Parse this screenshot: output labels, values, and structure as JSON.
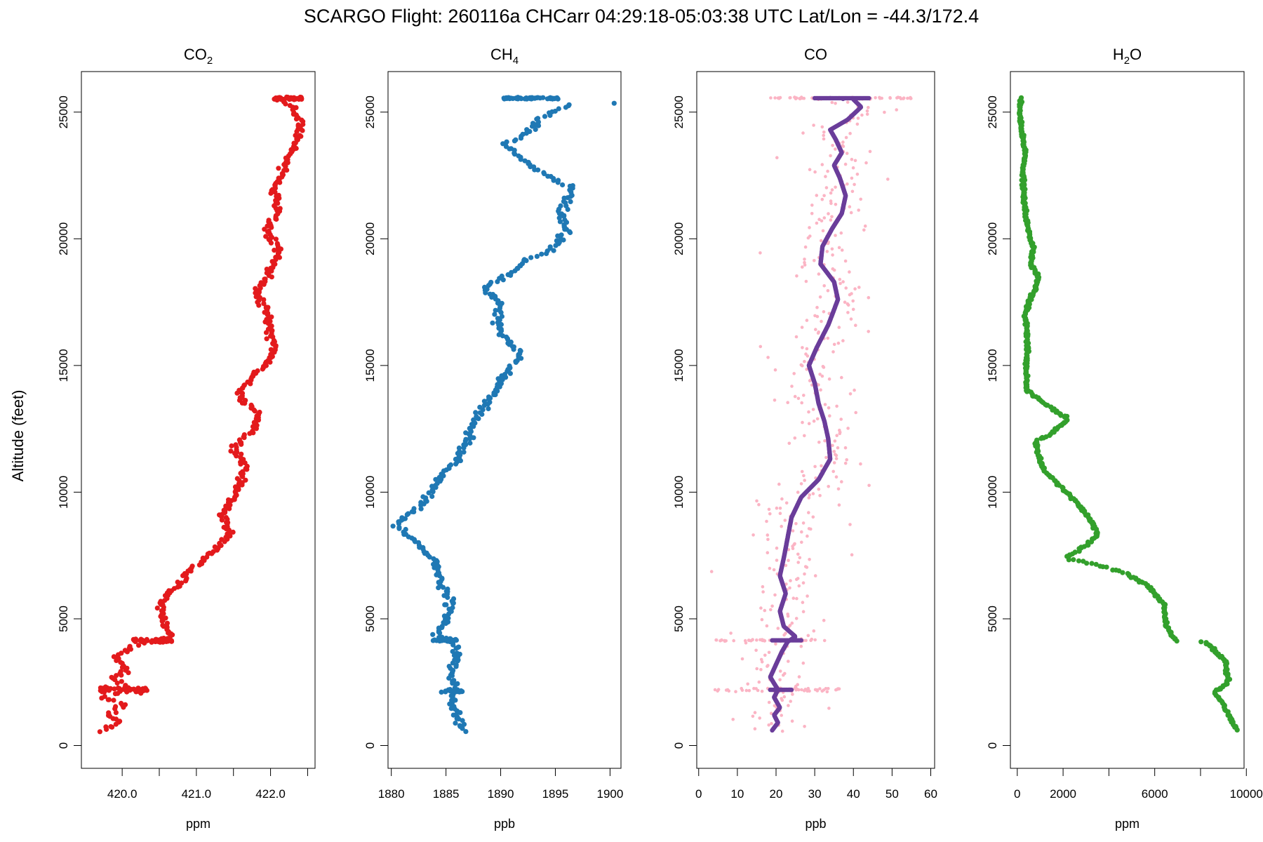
{
  "title": "SCARGO Flight: 260116a  CHCarr  04:29:18-05:03:38 UTC  Lat/Lon = -44.3/172.4",
  "ylabel": "Altitude (feet)",
  "chart_data": [
    {
      "type": "scatter",
      "name": "co2",
      "title_main": "CO",
      "title_sub": "2",
      "xlabel": "ppm",
      "xlim": [
        419.45,
        422.6
      ],
      "ylim": [
        -900,
        26600
      ],
      "xticks": [
        420.0,
        420.5,
        421.0,
        421.5,
        422.0,
        422.5
      ],
      "xtick_labels": [
        "420.0",
        "",
        "421.0",
        "",
        "422.0",
        ""
      ],
      "yticks": [
        0,
        5000,
        10000,
        15000,
        20000,
        25000
      ],
      "ytick_labels": [
        "0",
        "5000",
        "10000",
        "15000",
        "20000",
        "25000"
      ],
      "color": "#e31a1c",
      "profile": [
        [
          419.75,
          600
        ],
        [
          419.95,
          900
        ],
        [
          419.8,
          1300
        ],
        [
          420.05,
          1600
        ],
        [
          419.7,
          1900
        ],
        [
          420.1,
          2200
        ],
        [
          419.9,
          2600
        ],
        [
          420.05,
          3000
        ],
        [
          419.9,
          3500
        ],
        [
          420.1,
          3900
        ],
        [
          420.4,
          4100
        ],
        [
          420.65,
          4300
        ],
        [
          420.55,
          5000
        ],
        [
          420.5,
          5600
        ],
        [
          420.75,
          6300
        ],
        [
          420.95,
          7000
        ],
        [
          421.2,
          7600
        ],
        [
          421.45,
          8300
        ],
        [
          421.35,
          9100
        ],
        [
          421.55,
          10000
        ],
        [
          421.65,
          11000
        ],
        [
          421.5,
          11800
        ],
        [
          421.75,
          12400
        ],
        [
          421.85,
          13100
        ],
        [
          421.55,
          13800
        ],
        [
          421.75,
          14600
        ],
        [
          422.05,
          15400
        ],
        [
          422.0,
          16300
        ],
        [
          421.95,
          17200
        ],
        [
          421.8,
          17800
        ],
        [
          422.0,
          18700
        ],
        [
          422.1,
          19600
        ],
        [
          421.95,
          20300
        ],
        [
          422.1,
          21100
        ],
        [
          422.05,
          22000
        ],
        [
          422.2,
          22900
        ],
        [
          422.35,
          23800
        ],
        [
          422.4,
          24600
        ],
        [
          422.3,
          25200
        ],
        [
          422.1,
          25500
        ],
        [
          422.4,
          25550
        ]
      ],
      "bursts": [
        {
          "alt": 2200,
          "min": 419.7,
          "max": 420.35,
          "n": 55,
          "spread": 50
        },
        {
          "alt": 4150,
          "min": 420.15,
          "max": 420.68,
          "n": 45,
          "spread": 40
        },
        {
          "alt": 25550,
          "min": 422.05,
          "max": 422.45,
          "n": 45,
          "spread": 30
        }
      ],
      "jitter": 0.05,
      "n": 460,
      "point_r": 3.6
    },
    {
      "type": "scatter",
      "name": "ch4",
      "title_main": "CH",
      "title_sub": "4",
      "xlabel": "ppb",
      "xlim": [
        1879.7,
        1901.0
      ],
      "ylim": [
        -900,
        26600
      ],
      "xticks": [
        1880,
        1885,
        1890,
        1895,
        1900
      ],
      "xtick_labels": [
        "1880",
        "1885",
        "1890",
        "1895",
        "1900"
      ],
      "yticks": [
        0,
        5000,
        10000,
        15000,
        20000,
        25000
      ],
      "ytick_labels": [
        "0",
        "5000",
        "10000",
        "15000",
        "20000",
        "25000"
      ],
      "color": "#1f78b4",
      "profile": [
        [
          1886.5,
          600
        ],
        [
          1886.0,
          1100
        ],
        [
          1885.5,
          1700
        ],
        [
          1886.0,
          2200
        ],
        [
          1885.5,
          2800
        ],
        [
          1886.0,
          3400
        ],
        [
          1885.5,
          4100
        ],
        [
          1884.0,
          4300
        ],
        [
          1885.0,
          5000
        ],
        [
          1885.5,
          5700
        ],
        [
          1884.5,
          6500
        ],
        [
          1884.0,
          7300
        ],
        [
          1882.5,
          7900
        ],
        [
          1881.5,
          8300
        ],
        [
          1880.5,
          8700
        ],
        [
          1882.0,
          9300
        ],
        [
          1883.5,
          9900
        ],
        [
          1884.5,
          10500
        ],
        [
          1886.0,
          11300
        ],
        [
          1887.0,
          12100
        ],
        [
          1887.5,
          12800
        ],
        [
          1888.5,
          13400
        ],
        [
          1889.5,
          14000
        ],
        [
          1890.5,
          14700
        ],
        [
          1892.0,
          15500
        ],
        [
          1889.5,
          16500
        ],
        [
          1890.0,
          17400
        ],
        [
          1888.5,
          18100
        ],
        [
          1890.5,
          18500
        ],
        [
          1892.0,
          19100
        ],
        [
          1894.5,
          19500
        ],
        [
          1896.0,
          20300
        ],
        [
          1895.5,
          21100
        ],
        [
          1896.5,
          22000
        ],
        [
          1893.5,
          22700
        ],
        [
          1891.5,
          23300
        ],
        [
          1890.5,
          23700
        ],
        [
          1892.5,
          24200
        ],
        [
          1893.5,
          24700
        ],
        [
          1896.5,
          25300
        ],
        [
          1900.5,
          25350
        ]
      ],
      "bursts": [
        {
          "alt": 25550,
          "min": 1890.2,
          "max": 1895.3,
          "n": 55,
          "spread": 20
        },
        {
          "alt": 4150,
          "min": 1883.8,
          "max": 1886.0,
          "n": 15,
          "spread": 25
        },
        {
          "alt": 2150,
          "min": 1884.5,
          "max": 1886.5,
          "n": 20,
          "spread": 30
        }
      ],
      "jitter": 0.4,
      "n": 420,
      "point_r": 3.6
    },
    {
      "type": "scatter",
      "name": "co",
      "title_main": "CO",
      "title_sub": "",
      "xlabel": "ppb",
      "xlim": [
        -0.5,
        61.0
      ],
      "ylim": [
        -900,
        26600
      ],
      "xticks": [
        0,
        10,
        20,
        30,
        40,
        50,
        60
      ],
      "xtick_labels": [
        "0",
        "10",
        "20",
        "30",
        "40",
        "50",
        "60"
      ],
      "yticks": [
        0,
        5000,
        10000,
        15000,
        20000,
        25000
      ],
      "ytick_labels": [
        "0",
        "5000",
        "10000",
        "15000",
        "20000",
        "25000"
      ],
      "color": "#fbb4c4",
      "smooth_color": "#6a3d9a",
      "profile": [
        [
          19.0,
          600
        ],
        [
          20.5,
          900
        ],
        [
          19.5,
          1200
        ],
        [
          21.0,
          1500
        ],
        [
          19.5,
          1900
        ],
        [
          20.5,
          2200
        ],
        [
          18.5,
          2700
        ],
        [
          20.0,
          3200
        ],
        [
          21.5,
          3700
        ],
        [
          23.0,
          4100
        ],
        [
          25.0,
          4300
        ],
        [
          22.0,
          4700
        ],
        [
          21.0,
          5300
        ],
        [
          22.5,
          6000
        ],
        [
          21.0,
          6700
        ],
        [
          22.0,
          7400
        ],
        [
          23.0,
          8200
        ],
        [
          24.0,
          9000
        ],
        [
          26.5,
          9800
        ],
        [
          31.0,
          10500
        ],
        [
          34.0,
          11300
        ],
        [
          33.5,
          12100
        ],
        [
          32.5,
          12800
        ],
        [
          31.0,
          13500
        ],
        [
          30.0,
          14300
        ],
        [
          28.5,
          15000
        ],
        [
          30.5,
          15700
        ],
        [
          33.5,
          16600
        ],
        [
          36.0,
          17600
        ],
        [
          35.0,
          18300
        ],
        [
          31.5,
          19000
        ],
        [
          32.0,
          19700
        ],
        [
          34.5,
          20400
        ],
        [
          37.0,
          21000
        ],
        [
          38.0,
          21700
        ],
        [
          36.5,
          22400
        ],
        [
          35.0,
          22900
        ],
        [
          37.0,
          23400
        ],
        [
          35.5,
          23900
        ],
        [
          34.0,
          24300
        ],
        [
          38.5,
          24700
        ],
        [
          42.0,
          25200
        ],
        [
          40.0,
          25500
        ],
        [
          34.0,
          25550
        ]
      ],
      "bursts": [
        {
          "alt": 25550,
          "min": 18.0,
          "max": 55.0,
          "n": 70,
          "spread": 20
        },
        {
          "alt": 4150,
          "min": 4.0,
          "max": 33.0,
          "n": 45,
          "spread": 20
        },
        {
          "alt": 2200,
          "min": 4.0,
          "max": 38.0,
          "n": 50,
          "spread": 40
        }
      ],
      "jitter": 7.0,
      "n": 420,
      "point_r": 2.3,
      "smooth_r": 3.2
    },
    {
      "type": "scatter",
      "name": "h2o",
      "title_main": "H",
      "title_sub": "2",
      "title_tail": "O",
      "xlabel": "ppm",
      "xlim": [
        -300,
        9900
      ],
      "ylim": [
        -900,
        26600
      ],
      "xticks": [
        0,
        2000,
        4000,
        6000,
        8000,
        10000
      ],
      "xtick_labels": [
        "0",
        "2000",
        "",
        "6000",
        "",
        "10000"
      ],
      "yticks": [
        0,
        5000,
        10000,
        15000,
        20000,
        25000
      ],
      "ytick_labels": [
        "0",
        "5000",
        "10000",
        "15000",
        "20000",
        "25000"
      ],
      "color": "#33a02c",
      "profile": [
        [
          9600,
          600
        ],
        [
          9300,
          1100
        ],
        [
          9000,
          1600
        ],
        [
          8600,
          2100
        ],
        [
          9200,
          2500
        ],
        [
          9100,
          3300
        ],
        [
          8200,
          4100
        ],
        [
          6900,
          4150
        ],
        [
          6500,
          4700
        ],
        [
          6400,
          5600
        ],
        [
          5700,
          6300
        ],
        [
          4800,
          6800
        ],
        [
          3600,
          7100
        ],
        [
          2100,
          7400
        ],
        [
          3000,
          7900
        ],
        [
          3500,
          8300
        ],
        [
          3200,
          8900
        ],
        [
          2700,
          9500
        ],
        [
          2000,
          10100
        ],
        [
          1200,
          10800
        ],
        [
          900,
          11500
        ],
        [
          800,
          12000
        ],
        [
          1500,
          12300
        ],
        [
          2200,
          12900
        ],
        [
          1200,
          13500
        ],
        [
          400,
          14000
        ],
        [
          400,
          15000
        ],
        [
          450,
          16000
        ],
        [
          350,
          17000
        ],
        [
          500,
          17500
        ],
        [
          800,
          18000
        ],
        [
          900,
          18500
        ],
        [
          600,
          19000
        ],
        [
          700,
          19600
        ],
        [
          500,
          20300
        ],
        [
          300,
          21300
        ],
        [
          250,
          22500
        ],
        [
          350,
          23500
        ],
        [
          150,
          24500
        ],
        [
          100,
          25000
        ],
        [
          150,
          25550
        ]
      ],
      "bursts": [],
      "jitter": 60,
      "n": 620,
      "point_r": 3.6
    }
  ]
}
